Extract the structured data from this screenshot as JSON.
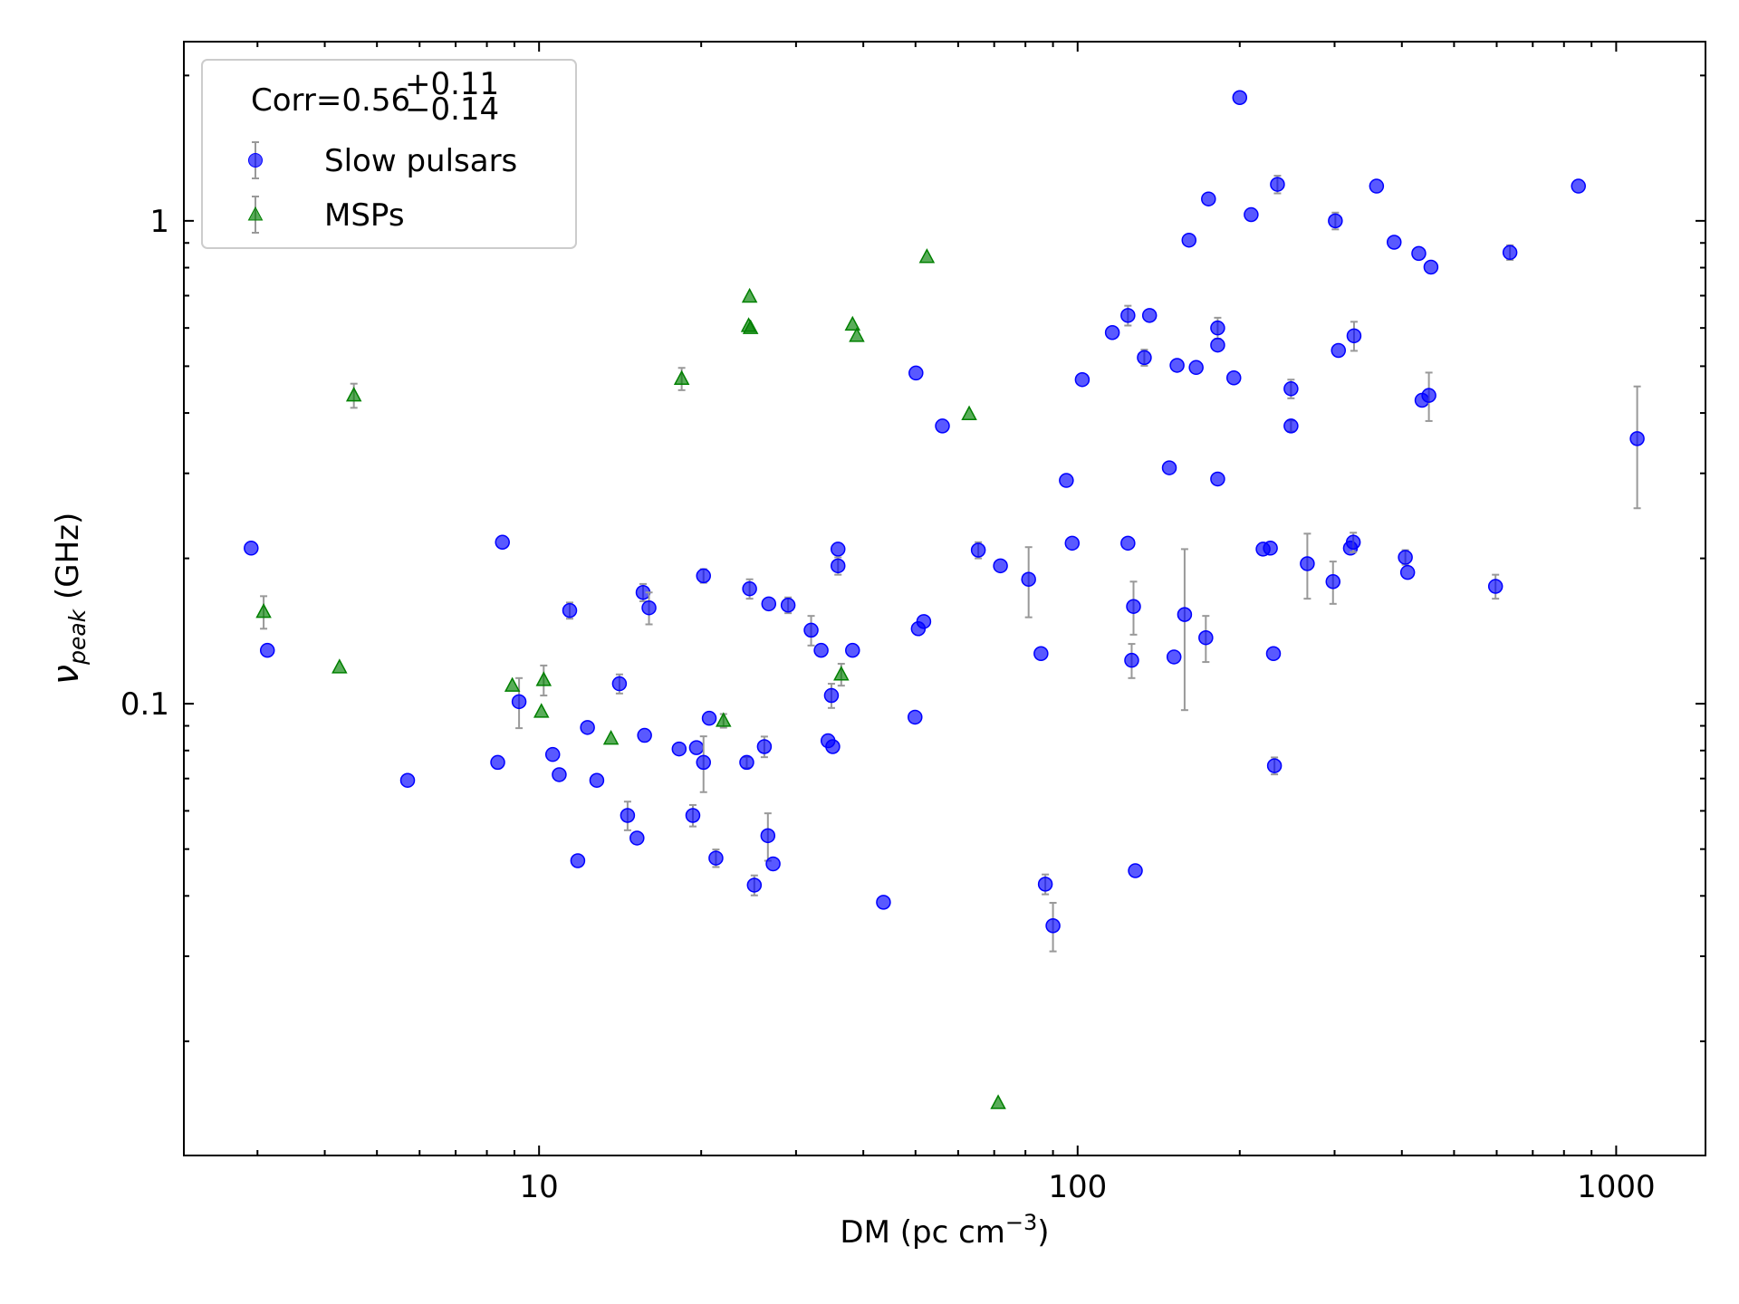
{
  "chart_data": {
    "type": "scatter",
    "x_label": {
      "main": "DM (pc cm",
      "sup": "−3",
      "end": ")"
    },
    "y_label": {
      "symbol": "ν",
      "subscript": "peak",
      "unit": " (GHz)"
    },
    "legend_title": {
      "main": "Corr=0.56",
      "upper": "+0.11",
      "lower": "−0.14"
    },
    "legend": "upper left",
    "grid": false,
    "xscale": "log",
    "yscale": "log",
    "xlim": [
      2.19,
      1465
    ],
    "ylim": [
      0.0116,
      2.35
    ],
    "xticks": [
      10,
      100,
      1000
    ],
    "yticks": [
      0.1,
      1
    ],
    "xminor_ticks": [
      3,
      4,
      5,
      6,
      7,
      8,
      9,
      20,
      30,
      40,
      50,
      60,
      70,
      80,
      90,
      200,
      300,
      400,
      500,
      600,
      700,
      800,
      900
    ],
    "yminor_ticks": [
      0.02,
      0.03,
      0.04,
      0.05,
      0.06,
      0.07,
      0.08,
      0.09,
      0.2,
      0.3,
      0.4,
      0.5,
      0.6,
      0.7,
      0.8,
      0.9,
      2
    ],
    "error_color": "#999999",
    "series": [
      {
        "name": "Slow pulsars",
        "color": "#0000ff",
        "marker": "circle",
        "x": [
          2.92,
          3.13,
          5.7,
          8.38,
          8.55,
          9.18,
          10.6,
          10.9,
          11.4,
          11.8,
          12.3,
          12.8,
          14.1,
          14.6,
          15.2,
          15.6,
          16.0,
          15.7,
          18.2,
          19.6,
          19.3,
          20.2,
          20.2,
          20.7,
          21.3,
          24.6,
          24.3,
          25.1,
          26.2,
          26.7,
          26.6,
          27.2,
          29.0,
          32.0,
          33.4,
          34.4,
          35.1,
          34.9,
          35.9,
          35.9,
          38.2,
          43.6,
          49.9,
          50.1,
          50.6,
          51.8,
          56.1,
          65.4,
          71.9,
          81.1,
          85.5,
          87.1,
          90.0,
          95.3,
          97.7,
          102,
          116,
          124,
          124,
          126,
          127,
          128,
          133,
          136,
          148,
          151,
          153,
          158,
          161,
          166,
          173,
          175,
          182,
          182,
          182,
          195,
          200,
          210,
          221,
          228,
          231,
          232,
          235,
          249,
          249,
          267,
          298,
          301,
          305,
          321,
          325,
          326,
          359,
          387,
          406,
          410,
          430,
          436,
          449,
          453,
          597,
          635,
          851,
          1094
        ],
        "values": [
          0.21,
          0.129,
          0.0694,
          0.0756,
          0.216,
          0.101,
          0.0785,
          0.0713,
          0.156,
          0.0473,
          0.0893,
          0.0694,
          0.11,
          0.0587,
          0.0527,
          0.17,
          0.158,
          0.086,
          0.0806,
          0.0811,
          0.0587,
          0.184,
          0.0756,
          0.0933,
          0.0479,
          0.173,
          0.0756,
          0.0421,
          0.0815,
          0.161,
          0.0533,
          0.0466,
          0.16,
          0.142,
          0.129,
          0.0838,
          0.0815,
          0.104,
          0.209,
          0.193,
          0.129,
          0.0388,
          0.0938,
          0.484,
          0.143,
          0.148,
          0.376,
          0.208,
          0.193,
          0.181,
          0.127,
          0.0423,
          0.0347,
          0.29,
          0.215,
          0.469,
          0.587,
          0.637,
          0.215,
          0.123,
          0.159,
          0.0451,
          0.521,
          0.637,
          0.308,
          0.125,
          0.502,
          0.153,
          0.912,
          0.497,
          0.137,
          1.11,
          0.6,
          0.553,
          0.292,
          0.473,
          1.8,
          1.03,
          0.209,
          0.21,
          0.127,
          0.0744,
          1.19,
          0.449,
          0.376,
          0.195,
          0.179,
          1.0,
          0.539,
          0.21,
          0.216,
          0.578,
          1.18,
          0.903,
          0.201,
          0.187,
          0.856,
          0.425,
          0.435,
          0.802,
          0.175,
          0.86,
          1.18,
          0.354
        ],
        "errors": [
          null,
          null,
          null,
          null,
          null,
          0.012,
          null,
          null,
          0.006,
          null,
          null,
          null,
          0.005,
          0.004,
          null,
          0.007,
          0.012,
          null,
          null,
          null,
          0.003,
          0.006,
          0.01,
          null,
          0.002,
          0.008,
          0.002,
          0.002,
          0.004,
          null,
          0.006,
          null,
          0.006,
          0.01,
          null,
          null,
          null,
          0.006,
          null,
          0.008,
          null,
          null,
          null,
          null,
          null,
          null,
          null,
          0.008,
          null,
          0.03,
          null,
          0.002,
          0.004,
          null,
          null,
          null,
          null,
          0.03,
          null,
          0.01,
          0.02,
          null,
          0.02,
          null,
          null,
          null,
          null,
          0.056,
          null,
          null,
          0.015,
          null,
          0.03,
          null,
          null,
          null,
          null,
          null,
          null,
          null,
          null,
          0.003,
          0.05,
          0.02,
          0.01,
          0.03,
          0.018,
          0.04,
          null,
          null,
          0.01,
          0.04,
          null,
          null,
          0.007,
          null,
          null,
          null,
          0.05,
          null,
          0.01,
          0.03,
          null,
          0.1
        ]
      },
      {
        "name": "MSPs",
        "color": "#008000",
        "marker": "triangle",
        "x": [
          3.08,
          4.26,
          4.53,
          8.92,
          10.1,
          10.2,
          13.6,
          18.4,
          22.0,
          24.6,
          24.5,
          24.7,
          36.4,
          38.2,
          38.9,
          52.5,
          62.9,
          71.2
        ],
        "values": [
          0.155,
          0.119,
          0.435,
          0.109,
          0.0963,
          0.112,
          0.0847,
          0.471,
          0.0922,
          0.697,
          0.606,
          0.6,
          0.115,
          0.61,
          0.578,
          0.842,
          0.398,
          0.0149
        ],
        "errors": [
          0.012,
          null,
          0.025,
          null,
          null,
          0.008,
          null,
          0.025,
          0.003,
          null,
          null,
          null,
          0.006,
          null,
          null,
          null,
          null,
          null
        ]
      }
    ]
  }
}
